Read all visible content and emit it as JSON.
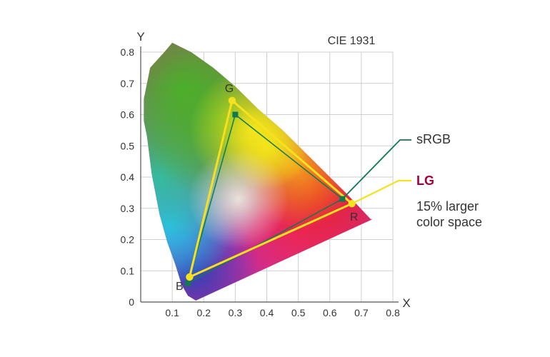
{
  "chart_data": {
    "type": "scatter",
    "title": "CIE 1931",
    "xlabel": "X",
    "ylabel": "Y",
    "xlim": [
      0,
      0.8
    ],
    "ylim": [
      0,
      0.8
    ],
    "x_ticks": [
      "0",
      "0.1",
      "0.2",
      "0.3",
      "0.4",
      "0.5",
      "0.6",
      "0.7",
      "0.8"
    ],
    "y_ticks": [
      "0",
      "0.1",
      "0.2",
      "0.3",
      "0.4",
      "0.5",
      "0.6",
      "0.7",
      "0.8"
    ],
    "grid": true,
    "series": [
      {
        "name": "sRGB",
        "color": "#0f7a4f",
        "points": [
          {
            "x": 0.3,
            "y": 0.6
          },
          {
            "x": 0.64,
            "y": 0.33
          },
          {
            "x": 0.15,
            "y": 0.06
          }
        ]
      },
      {
        "name": "LG",
        "color": "#f5e11e",
        "points": [
          {
            "label": "G",
            "x": 0.29,
            "y": 0.645
          },
          {
            "label": "R",
            "x": 0.67,
            "y": 0.315
          },
          {
            "label": "B",
            "x": 0.155,
            "y": 0.08
          }
        ]
      }
    ],
    "legend": {
      "srgb_label": "sRGB",
      "lg_label": "LG",
      "lg_note_line1": "15% larger",
      "lg_note_line2": "color space",
      "lg_color": "#a50034"
    },
    "locus": [
      [
        0.175,
        0.005
      ],
      [
        0.15,
        0.02
      ],
      [
        0.13,
        0.055
      ],
      [
        0.11,
        0.12
      ],
      [
        0.085,
        0.19
      ],
      [
        0.06,
        0.28
      ],
      [
        0.035,
        0.41
      ],
      [
        0.02,
        0.53
      ],
      [
        0.01,
        0.58
      ],
      [
        0.01,
        0.65
      ],
      [
        0.03,
        0.75
      ],
      [
        0.075,
        0.8
      ],
      [
        0.1,
        0.83
      ],
      [
        0.16,
        0.8
      ],
      [
        0.23,
        0.75
      ],
      [
        0.3,
        0.69
      ],
      [
        0.37,
        0.62
      ],
      [
        0.45,
        0.55
      ],
      [
        0.52,
        0.48
      ],
      [
        0.58,
        0.42
      ],
      [
        0.65,
        0.35
      ],
      [
        0.73,
        0.265
      ],
      [
        0.735,
        0.265
      ]
    ]
  }
}
